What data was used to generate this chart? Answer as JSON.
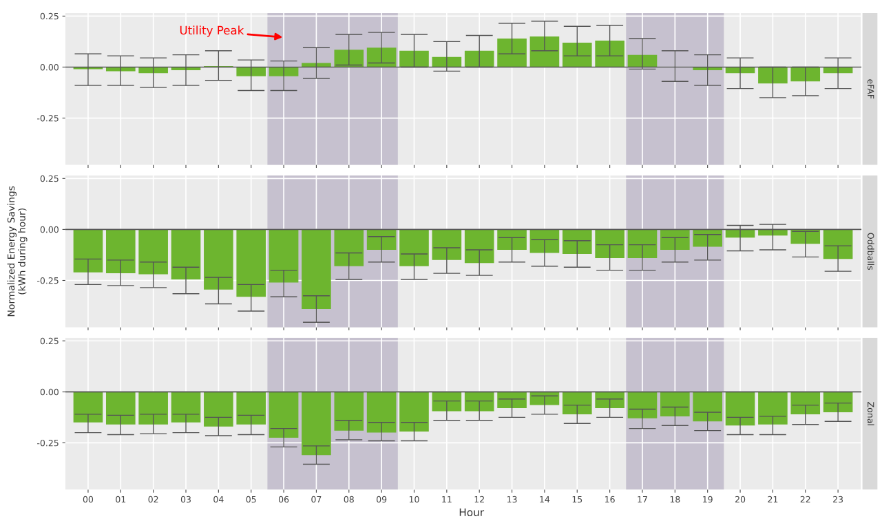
{
  "chart_data": [
    {
      "type": "bar",
      "title": "eFAF",
      "categories": [
        "00",
        "01",
        "02",
        "03",
        "04",
        "05",
        "06",
        "07",
        "08",
        "09",
        "10",
        "11",
        "12",
        "13",
        "14",
        "15",
        "16",
        "17",
        "18",
        "19",
        "20",
        "21",
        "22",
        "23"
      ],
      "series": [
        {
          "color": "#6db52f",
          "values": [
            -0.01,
            -0.02,
            -0.03,
            -0.015,
            0.005,
            -0.045,
            -0.045,
            0.02,
            0.085,
            0.095,
            0.08,
            0.05,
            0.08,
            0.14,
            0.15,
            0.12,
            0.13,
            0.06,
            0.0,
            -0.015,
            -0.03,
            -0.08,
            -0.07,
            -0.03
          ],
          "errors": [
            [
              -0.09,
              0.065
            ],
            [
              -0.09,
              0.055
            ],
            [
              -0.1,
              0.045
            ],
            [
              -0.09,
              0.06
            ],
            [
              -0.065,
              0.08
            ],
            [
              -0.115,
              0.035
            ],
            [
              -0.115,
              0.03
            ],
            [
              -0.055,
              0.095
            ],
            [
              0.01,
              0.16
            ],
            [
              0.02,
              0.17
            ],
            [
              0.0,
              0.16
            ],
            [
              -0.02,
              0.125
            ],
            [
              0.0,
              0.155
            ],
            [
              0.065,
              0.215
            ],
            [
              0.08,
              0.225
            ],
            [
              0.055,
              0.2
            ],
            [
              0.055,
              0.205
            ],
            [
              -0.01,
              0.14
            ],
            [
              -0.07,
              0.08
            ],
            [
              -0.09,
              0.06
            ],
            [
              -0.105,
              0.045
            ],
            [
              -0.15,
              0.0
            ],
            [
              -0.14,
              0.0
            ],
            [
              -0.105,
              0.045
            ]
          ]
        }
      ],
      "ylim": [
        -0.48,
        0.265
      ],
      "yticks": [
        {
          "value": -0.25,
          "label": "-0.25"
        },
        {
          "value": 0,
          "label": "0.00"
        },
        {
          "value": 0.25,
          "label": "0.25"
        }
      ],
      "grid": true,
      "tick_labels": "y",
      "bands": [
        {
          "axis": "x",
          "from": "06",
          "to": "09",
          "color": "#b9b3c6"
        },
        {
          "axis": "x",
          "from": "17",
          "to": "19",
          "color": "#b9b3c6"
        }
      ],
      "annotations": [
        "Utility Peak"
      ]
    },
    {
      "type": "bar",
      "title": "Oddballs",
      "ylabel": "Normalized Energy Savings\n(kWh during hour)",
      "categories": [
        "00",
        "01",
        "02",
        "03",
        "04",
        "05",
        "06",
        "07",
        "08",
        "09",
        "10",
        "11",
        "12",
        "13",
        "14",
        "15",
        "16",
        "17",
        "18",
        "19",
        "20",
        "21",
        "22",
        "23"
      ],
      "series": [
        {
          "color": "#6db52f",
          "values": [
            -0.21,
            -0.215,
            -0.22,
            -0.245,
            -0.295,
            -0.33,
            -0.26,
            -0.39,
            -0.18,
            -0.1,
            -0.18,
            -0.15,
            -0.165,
            -0.1,
            -0.115,
            -0.12,
            -0.14,
            -0.14,
            -0.1,
            -0.085,
            -0.04,
            -0.03,
            -0.07,
            -0.145
          ],
          "errors": [
            [
              -0.27,
              -0.145
            ],
            [
              -0.275,
              -0.15
            ],
            [
              -0.285,
              -0.16
            ],
            [
              -0.315,
              -0.185
            ],
            [
              -0.365,
              -0.235
            ],
            [
              -0.4,
              -0.27
            ],
            [
              -0.33,
              -0.2
            ],
            [
              -0.455,
              -0.325
            ],
            [
              -0.245,
              -0.115
            ],
            [
              -0.16,
              -0.035
            ],
            [
              -0.245,
              -0.12
            ],
            [
              -0.215,
              -0.09
            ],
            [
              -0.225,
              -0.1
            ],
            [
              -0.16,
              -0.04
            ],
            [
              -0.18,
              -0.05
            ],
            [
              -0.185,
              -0.055
            ],
            [
              -0.2,
              -0.075
            ],
            [
              -0.2,
              -0.075
            ],
            [
              -0.16,
              -0.04
            ],
            [
              -0.15,
              -0.025
            ],
            [
              -0.105,
              0.02
            ],
            [
              -0.1,
              0.025
            ],
            [
              -0.135,
              -0.01
            ],
            [
              -0.205,
              -0.08
            ]
          ]
        }
      ],
      "ylim": [
        -0.48,
        0.265
      ],
      "yticks": [
        {
          "value": -0.25,
          "label": "-0.25"
        },
        {
          "value": 0,
          "label": "0.00"
        },
        {
          "value": 0.25,
          "label": "0.25"
        }
      ],
      "grid": true,
      "tick_labels": "y",
      "bands": [
        {
          "axis": "x",
          "from": "06",
          "to": "09",
          "color": "#b9b3c6"
        },
        {
          "axis": "x",
          "from": "17",
          "to": "19",
          "color": "#b9b3c6"
        }
      ]
    },
    {
      "type": "bar",
      "title": "Zonal",
      "xlabel": "Hour",
      "categories": [
        "00",
        "01",
        "02",
        "03",
        "04",
        "05",
        "06",
        "07",
        "08",
        "09",
        "10",
        "11",
        "12",
        "13",
        "14",
        "15",
        "16",
        "17",
        "18",
        "19",
        "20",
        "21",
        "22",
        "23"
      ],
      "series": [
        {
          "color": "#6db52f",
          "values": [
            -0.15,
            -0.16,
            -0.16,
            -0.15,
            -0.17,
            -0.16,
            -0.225,
            -0.31,
            -0.19,
            -0.2,
            -0.195,
            -0.095,
            -0.095,
            -0.08,
            -0.065,
            -0.11,
            -0.08,
            -0.13,
            -0.12,
            -0.145,
            -0.165,
            -0.16,
            -0.11,
            -0.1
          ],
          "errors": [
            [
              -0.2,
              -0.11
            ],
            [
              -0.21,
              -0.115
            ],
            [
              -0.205,
              -0.11
            ],
            [
              -0.2,
              -0.11
            ],
            [
              -0.215,
              -0.125
            ],
            [
              -0.21,
              -0.115
            ],
            [
              -0.27,
              -0.18
            ],
            [
              -0.355,
              -0.265
            ],
            [
              -0.235,
              -0.14
            ],
            [
              -0.24,
              -0.15
            ],
            [
              -0.24,
              -0.15
            ],
            [
              -0.14,
              -0.045
            ],
            [
              -0.14,
              -0.045
            ],
            [
              -0.125,
              -0.035
            ],
            [
              -0.11,
              -0.02
            ],
            [
              -0.155,
              -0.065
            ],
            [
              -0.125,
              -0.035
            ],
            [
              -0.18,
              -0.085
            ],
            [
              -0.165,
              -0.075
            ],
            [
              -0.19,
              -0.1
            ],
            [
              -0.21,
              -0.125
            ],
            [
              -0.21,
              -0.12
            ],
            [
              -0.16,
              -0.065
            ],
            [
              -0.145,
              -0.055
            ]
          ]
        }
      ],
      "ylim": [
        -0.48,
        0.265
      ],
      "yticks": [
        {
          "value": -0.25,
          "label": "-0.25"
        },
        {
          "value": 0,
          "label": "0.00"
        },
        {
          "value": 0.25,
          "label": "0.25"
        }
      ],
      "grid": true,
      "bands": [
        {
          "axis": "x",
          "from": "06",
          "to": "09",
          "color": "#b9b3c6"
        },
        {
          "axis": "x",
          "from": "17",
          "to": "19",
          "color": "#b9b3c6"
        }
      ]
    }
  ]
}
